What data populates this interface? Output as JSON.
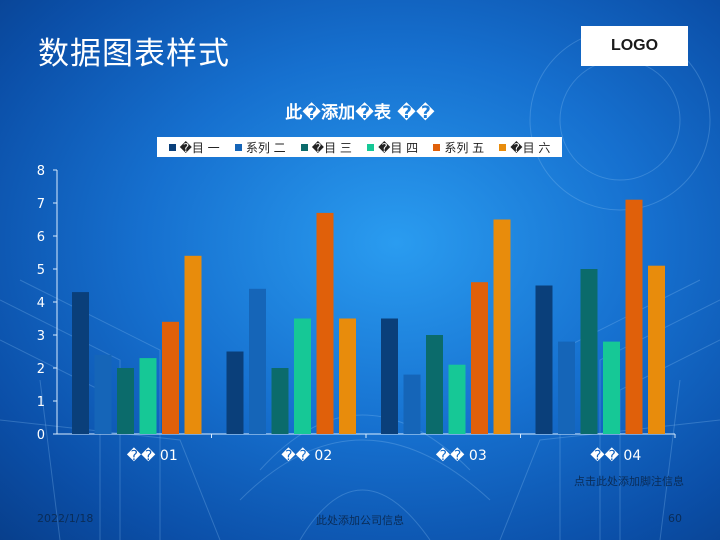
{
  "slide": {
    "title": "数据图表样式",
    "logo": "LOGO",
    "note": "点击此处添加脚注信息",
    "date": "2022/1/18",
    "company": "此处添加公司信息",
    "page_number": "60"
  },
  "colors": {
    "background": "#1670cf",
    "legend_bg": "#ffffff",
    "axis": "#d9ecff"
  },
  "chart_data": {
    "type": "bar",
    "title": "此�添加�表 ��",
    "xlabel": "",
    "ylabel": "",
    "ylim": [
      0,
      8
    ],
    "yticks": [
      "0",
      "1",
      "2",
      "3",
      "4",
      "5",
      "6",
      "7",
      "8"
    ],
    "grid": false,
    "legend_position": "top",
    "categories": [
      "�� 01",
      "�� 02",
      "�� 03",
      "�� 04"
    ],
    "series": [
      {
        "name": "�目 一",
        "color": "#0a3f7a",
        "values": [
          4.3,
          2.5,
          3.5,
          4.5
        ]
      },
      {
        "name": "系列 二",
        "color": "#1565b8",
        "values": [
          2.4,
          4.4,
          1.8,
          2.8
        ]
      },
      {
        "name": "�目 三",
        "color": "#0b6b6b",
        "values": [
          2.0,
          2.0,
          3.0,
          5.0
        ]
      },
      {
        "name": "�目 四",
        "color": "#16c896",
        "values": [
          2.3,
          3.5,
          2.1,
          2.8
        ]
      },
      {
        "name": "系列 五",
        "color": "#e0600a",
        "values": [
          3.4,
          6.7,
          4.6,
          7.1
        ]
      },
      {
        "name": "�目 六",
        "color": "#e88c0c",
        "values": [
          5.4,
          3.5,
          6.5,
          5.1
        ]
      }
    ]
  }
}
